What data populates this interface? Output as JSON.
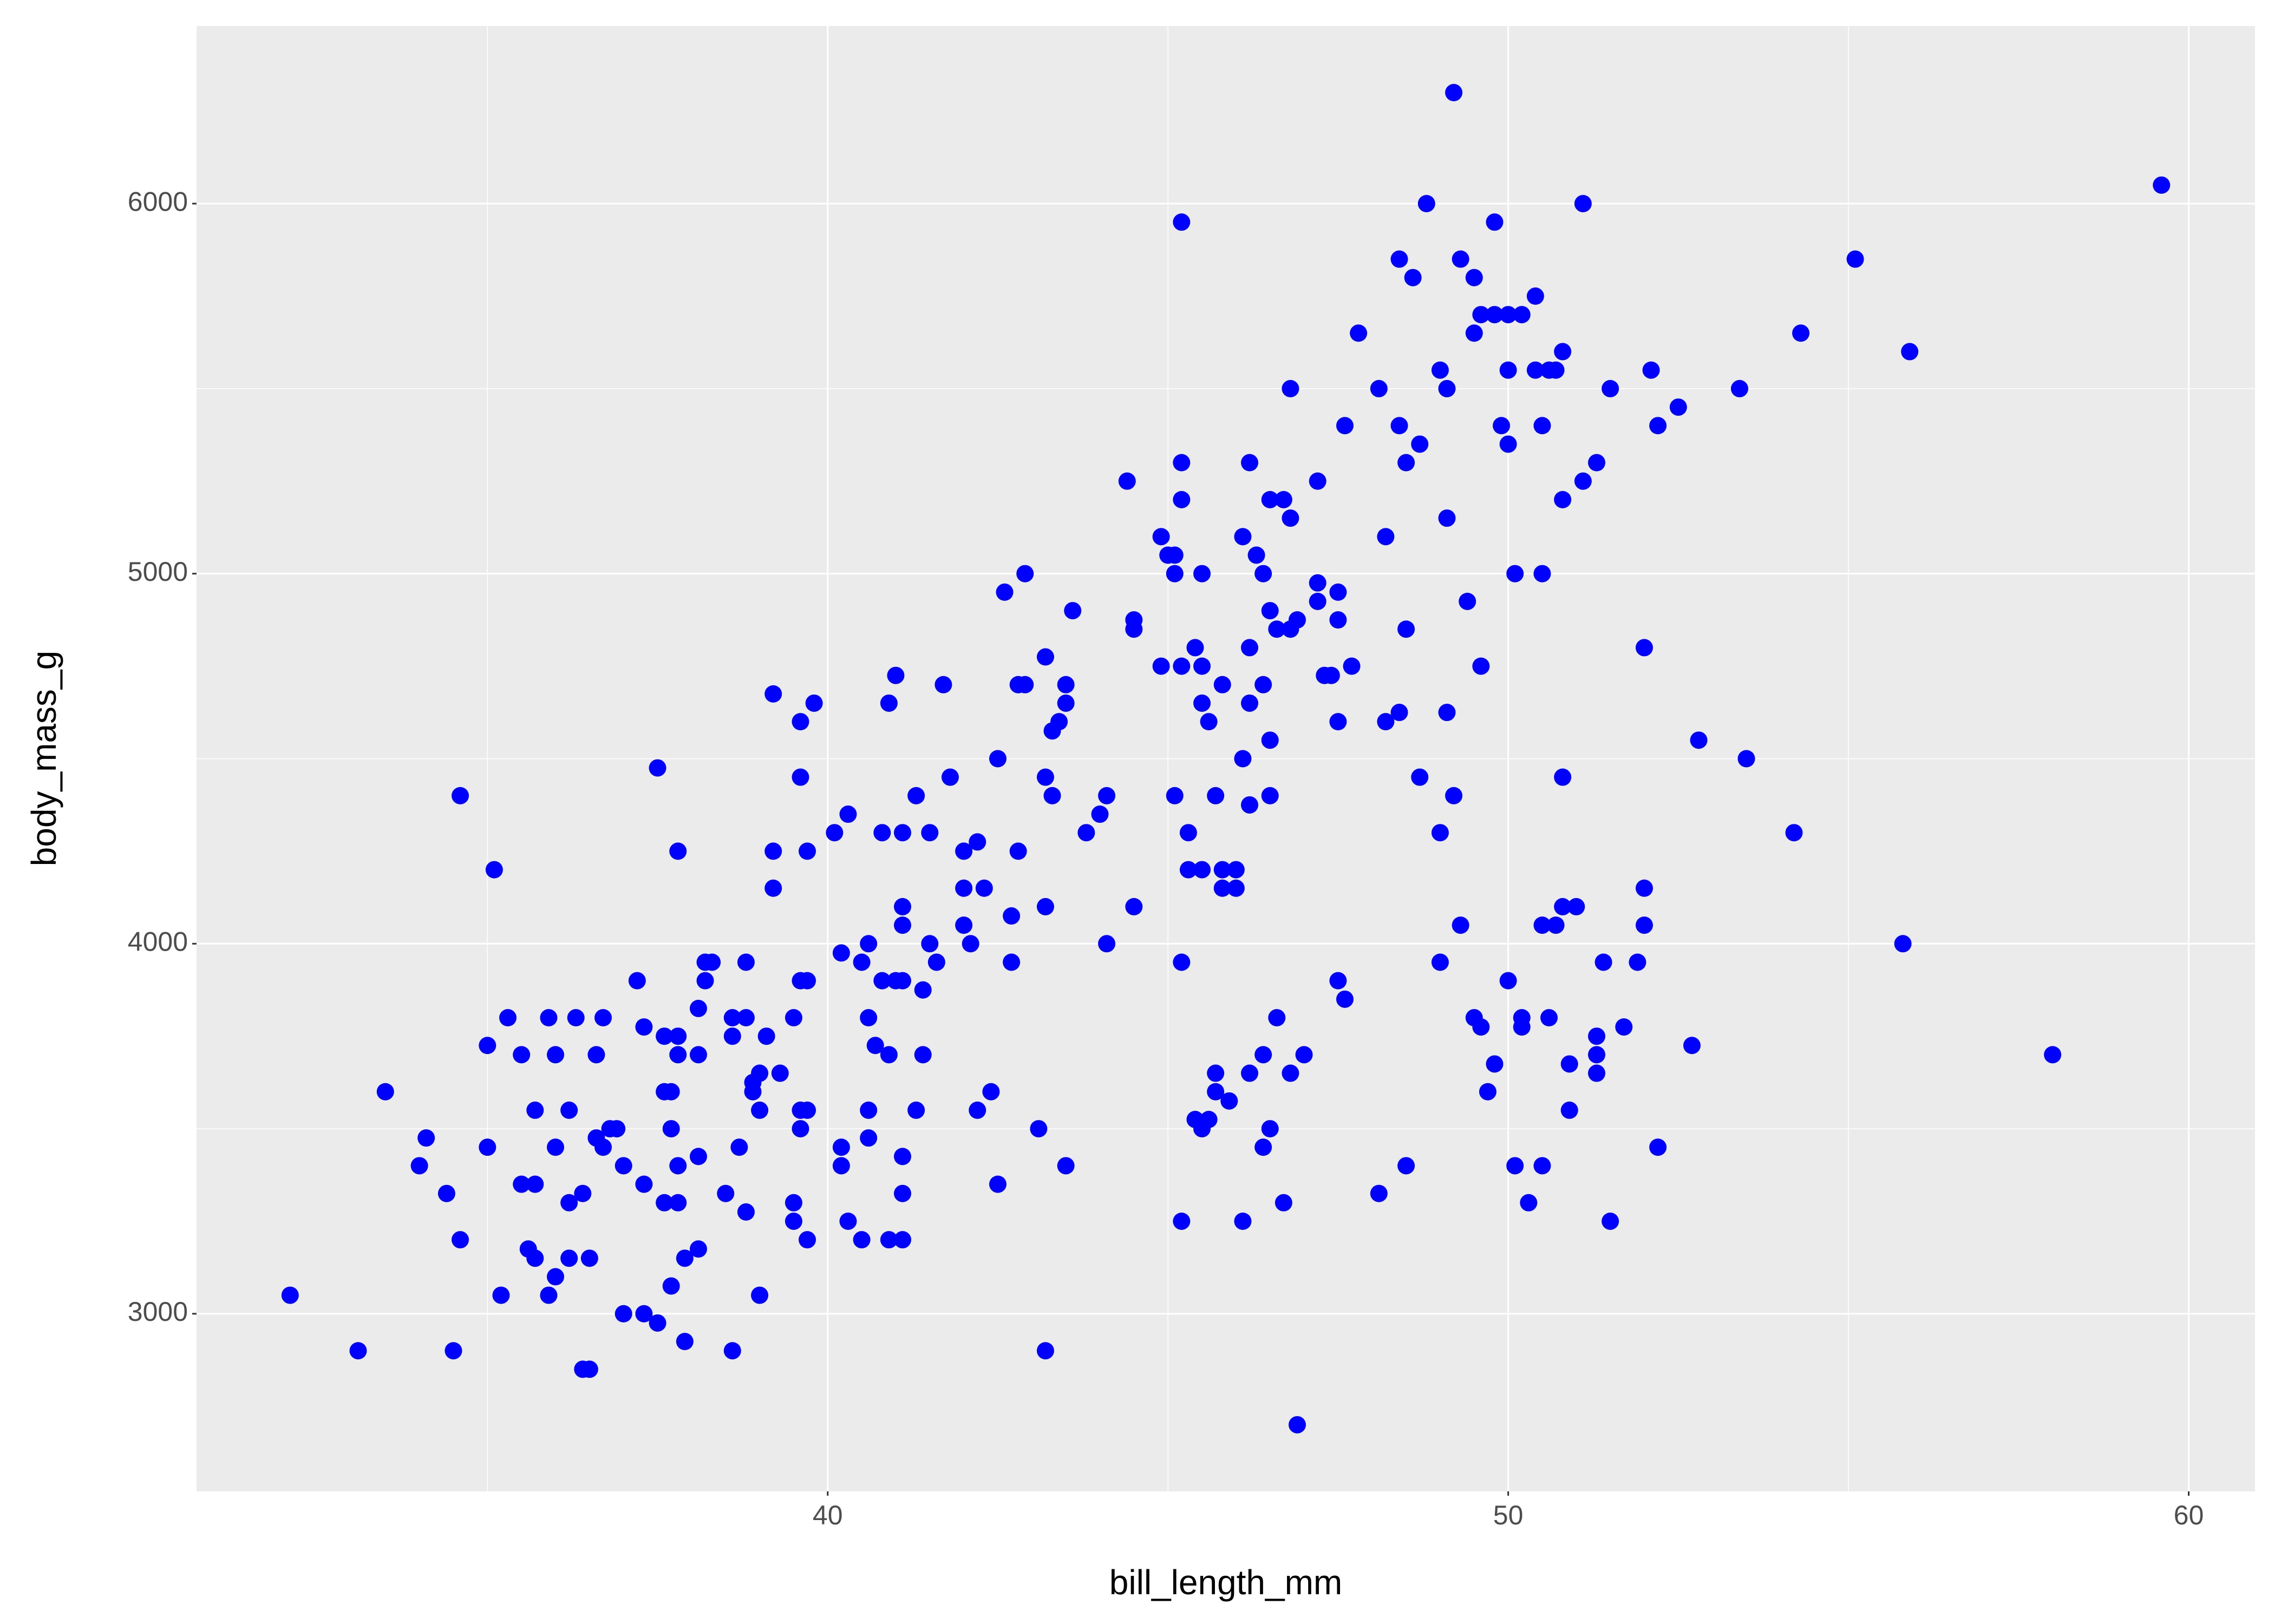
{
  "chart_data": {
    "type": "scatter",
    "x_label": "bill_length_mm",
    "y_label": "body_mass_g",
    "color": "#0000FF",
    "xlim": [
      30.725,
      60.975
    ],
    "ylim": [
      2520,
      6480
    ],
    "xticks": [
      40,
      50,
      60
    ],
    "yticks": [
      3000,
      4000,
      5000,
      6000
    ],
    "x_minor_grid": [
      35,
      45,
      55
    ],
    "y_minor_grid": [
      3500,
      4500,
      5500
    ],
    "grid": true,
    "x": [
      32.1,
      33.1,
      33.5,
      34.1,
      34.0,
      34.4,
      34.5,
      34.6,
      34.6,
      35.0,
      35.0,
      35.1,
      35.2,
      35.3,
      35.5,
      35.5,
      35.6,
      35.7,
      35.7,
      35.7,
      35.9,
      35.9,
      36.0,
      36.0,
      36.0,
      36.2,
      36.2,
      36.2,
      36.3,
      36.4,
      36.4,
      36.5,
      36.5,
      36.6,
      36.6,
      36.7,
      36.7,
      36.8,
      36.9,
      37.0,
      37.0,
      37.2,
      37.3,
      37.3,
      37.3,
      37.5,
      37.5,
      37.6,
      37.6,
      37.6,
      37.7,
      37.7,
      37.7,
      37.8,
      37.8,
      37.8,
      37.8,
      37.8,
      37.9,
      37.9,
      38.1,
      38.1,
      38.1,
      38.1,
      38.2,
      38.2,
      38.3,
      38.5,
      38.6,
      38.6,
      38.6,
      38.7,
      38.8,
      38.8,
      38.8,
      38.9,
      38.9,
      39.0,
      39.0,
      39.0,
      39.1,
      39.2,
      39.2,
      39.2,
      39.3,
      39.5,
      39.5,
      39.5,
      39.6,
      39.6,
      39.6,
      39.6,
      39.6,
      39.7,
      39.7,
      39.7,
      39.7,
      39.8,
      40.1,
      40.2,
      40.2,
      40.2,
      40.3,
      40.3,
      40.5,
      40.5,
      40.6,
      40.6,
      40.6,
      40.6,
      40.7,
      40.8,
      40.8,
      40.9,
      40.9,
      40.9,
      41.0,
      41.0,
      41.1,
      41.1,
      41.1,
      41.1,
      41.1,
      41.1,
      41.1,
      41.3,
      41.3,
      41.4,
      41.4,
      41.5,
      41.5,
      41.6,
      41.7,
      41.8,
      42.0,
      42.0,
      42.0,
      42.1,
      42.2,
      42.2,
      42.3,
      42.4,
      42.5,
      42.5,
      42.6,
      42.7,
      42.7,
      42.8,
      42.8,
      42.9,
      42.9,
      43.1,
      43.2,
      43.2,
      43.2,
      43.2,
      43.3,
      43.3,
      43.4,
      43.5,
      43.5,
      43.5,
      43.6,
      43.8,
      44.0,
      44.1,
      44.1,
      44.4,
      44.5,
      44.5,
      44.5,
      44.9,
      44.9,
      45.0,
      45.1,
      45.1,
      45.1,
      45.2,
      45.2,
      45.2,
      45.2,
      45.2,
      45.2,
      45.3,
      45.3,
      45.4,
      45.4,
      45.5,
      45.5,
      45.5,
      45.5,
      45.5,
      45.6,
      45.6,
      45.7,
      45.7,
      45.7,
      45.8,
      45.8,
      45.8,
      45.9,
      46.0,
      46.0,
      46.1,
      46.1,
      46.1,
      46.2,
      46.2,
      46.2,
      46.2,
      46.2,
      46.3,
      46.4,
      46.4,
      46.4,
      46.4,
      46.5,
      46.5,
      46.5,
      46.5,
      46.5,
      46.6,
      46.6,
      46.7,
      46.7,
      46.8,
      46.8,
      46.8,
      46.8,
      46.9,
      46.9,
      47.0,
      47.2,
      47.2,
      47.2,
      47.3,
      47.4,
      47.5,
      47.5,
      47.5,
      47.5,
      47.6,
      47.6,
      47.7,
      47.8,
      48.1,
      48.1,
      48.2,
      48.2,
      48.4,
      48.4,
      48.4,
      48.5,
      48.5,
      48.5,
      48.6,
      48.7,
      48.7,
      48.8,
      49.0,
      49.0,
      49.0,
      49.1,
      49.1,
      49.1,
      49.2,
      49.2,
      49.3,
      49.3,
      49.4,
      49.5,
      49.5,
      49.5,
      49.6,
      49.6,
      49.6,
      49.7,
      49.8,
      49.8,
      49.8,
      49.9,
      50.0,
      50.0,
      50.0,
      50.0,
      50.1,
      50.1,
      50.2,
      50.2,
      50.2,
      50.3,
      50.4,
      50.4,
      50.5,
      50.5,
      50.5,
      50.5,
      50.6,
      50.6,
      50.7,
      50.7,
      50.8,
      50.8,
      50.8,
      50.8,
      50.9,
      50.9,
      51.0,
      51.1,
      51.1,
      51.3,
      51.3,
      51.3,
      51.3,
      51.4,
      51.5,
      51.5,
      51.7,
      51.9,
      52.0,
      52.0,
      52.0,
      52.1,
      52.2,
      52.2,
      52.5,
      52.7,
      52.8,
      53.4,
      53.5,
      54.2,
      54.3,
      55.1,
      55.8,
      55.9,
      58.0,
      59.6
    ],
    "values": [
      3050,
      2900,
      3600,
      3475,
      3400,
      3325,
      2900,
      4400,
      3200,
      3725,
      3450,
      4200,
      3050,
      3800,
      3700,
      3350,
      3175,
      3350,
      3550,
      3150,
      3800,
      3050,
      3100,
      3450,
      3700,
      3550,
      3300,
      3150,
      3800,
      3325,
      2850,
      2850,
      3150,
      3700,
      3475,
      3800,
      3450,
      3500,
      3500,
      3400,
      3000,
      3900,
      3000,
      3775,
      3350,
      2975,
      4475,
      3750,
      3600,
      3300,
      3500,
      3075,
      3600,
      3750,
      3700,
      4250,
      3400,
      3300,
      3150,
      2925,
      3825,
      3175,
      3425,
      3700,
      3900,
      3950,
      3950,
      3325,
      2900,
      3800,
      3750,
      3450,
      3275,
      3950,
      3800,
      3625,
      3600,
      3650,
      3050,
      3550,
      3750,
      4675,
      4250,
      4150,
      3650,
      3800,
      3300,
      3250,
      3500,
      3550,
      3900,
      4600,
      4450,
      3200,
      3900,
      3550,
      4250,
      4650,
      4300,
      3975,
      3450,
      3400,
      4350,
      3250,
      3200,
      3950,
      4000,
      3800,
      3475,
      3550,
      3725,
      4300,
      3900,
      4650,
      3700,
      3200,
      3900,
      4725,
      3200,
      4100,
      4050,
      4300,
      3425,
      3325,
      3900,
      4400,
      3550,
      3875,
      3700,
      4300,
      4000,
      3950,
      4700,
      4450,
      4250,
      4050,
      4150,
      4000,
      4275,
      3550,
      4150,
      3600,
      4500,
      3350,
      4950,
      3950,
      4075,
      4250,
      4700,
      5000,
      4700,
      3500,
      2900,
      4100,
      4450,
      4775,
      4400,
      4575,
      4600,
      3400,
      4700,
      4650,
      4900,
      4300,
      4350,
      4000,
      4400,
      5250,
      4850,
      4875,
      4100,
      5100,
      4750,
      5050,
      4400,
      5000,
      5050,
      3950,
      3250,
      5300,
      5200,
      4750,
      5950,
      4300,
      4200,
      4800,
      3525,
      5000,
      4750,
      4200,
      3500,
      4650,
      4600,
      3525,
      3650,
      4400,
      3600,
      4150,
      4200,
      4700,
      3575,
      4200,
      4150,
      4500,
      5100,
      3250,
      4800,
      5300,
      4375,
      4650,
      3650,
      5050,
      5000,
      4700,
      3450,
      3700,
      4900,
      4400,
      4550,
      3500,
      5200,
      4850,
      3800,
      5200,
      3300,
      5500,
      5150,
      4850,
      3650,
      2700,
      4875,
      3700,
      5250,
      4975,
      4925,
      4725,
      4725,
      4950,
      4875,
      4600,
      3900,
      5400,
      3850,
      4750,
      5650,
      5500,
      3325,
      5100,
      4600,
      5850,
      5400,
      4625,
      5300,
      4850,
      3400,
      5800,
      5350,
      4450,
      6000,
      5550,
      3950,
      4300,
      5500,
      5150,
      4625,
      6300,
      4400,
      5850,
      4050,
      4925,
      5650,
      5800,
      3800,
      5700,
      4750,
      3775,
      3600,
      5950,
      3675,
      5700,
      5400,
      5700,
      5350,
      5550,
      3900,
      3400,
      5000,
      5700,
      3775,
      3800,
      3300,
      5750,
      5550,
      5000,
      5400,
      4050,
      3400,
      5550,
      3800,
      4050,
      5550,
      5600,
      5200,
      4450,
      4100,
      3675,
      3550,
      4100,
      5250,
      6000,
      5300,
      3750,
      3700,
      3650,
      3950,
      5500,
      3250,
      3775,
      3950,
      4800,
      4050,
      4150,
      5550,
      3450,
      5400,
      5450,
      3725,
      4550,
      5500,
      4500,
      4300,
      5650,
      5850,
      4000,
      5600,
      3700,
      6050
    ]
  }
}
